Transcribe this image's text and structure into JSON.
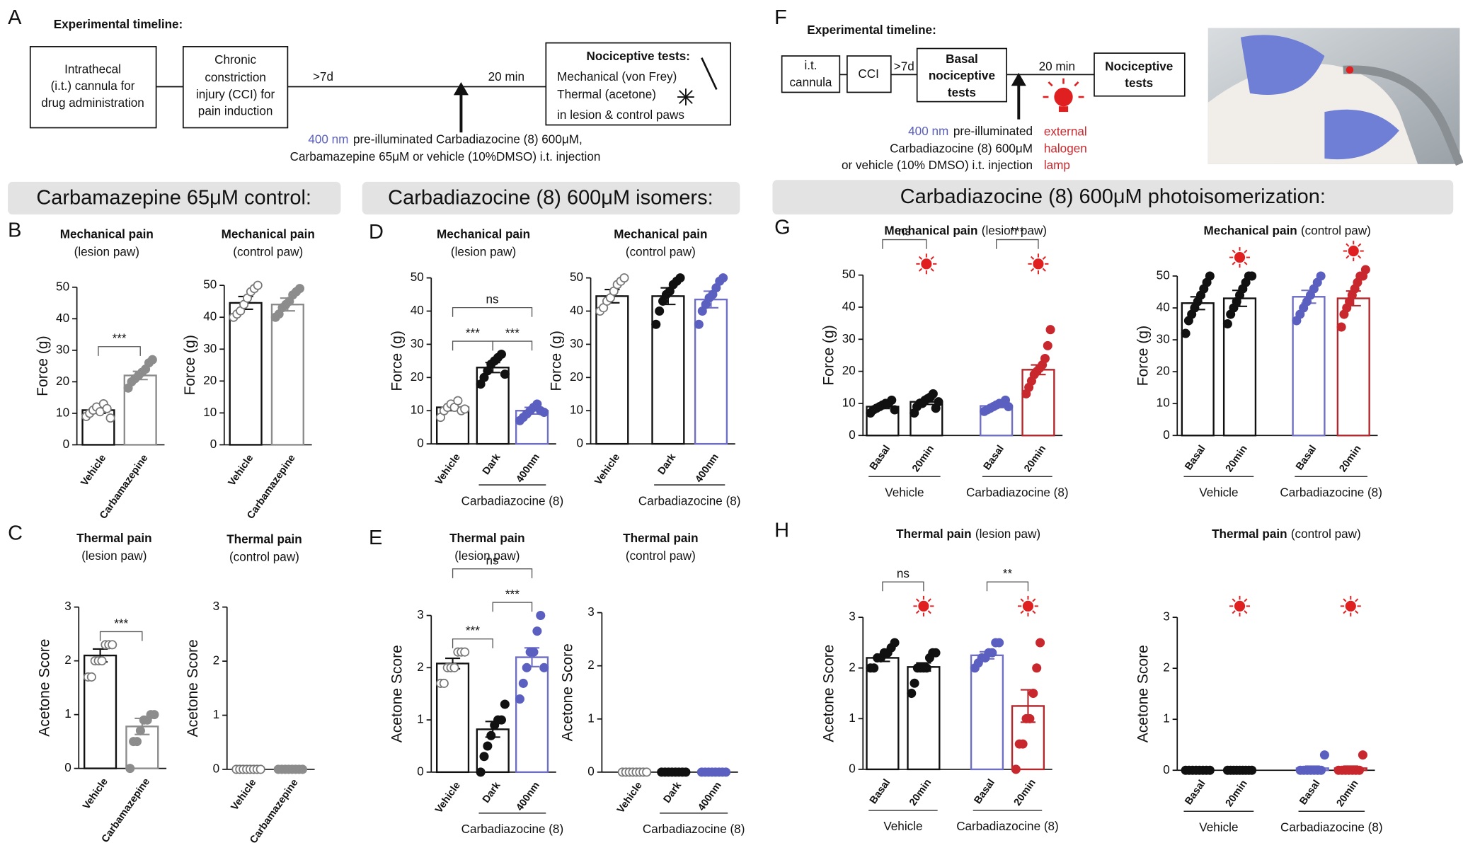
{
  "panel_a": {
    "label": "A",
    "heading": "Experimental timeline:",
    "boxes": [
      [
        "Intrathecal",
        "(i.t.) cannula for",
        "drug administration"
      ],
      [
        "Chronic",
        "constriction",
        "injury (CCI) for",
        "pain induction"
      ],
      [
        "Nociceptive tests:",
        "Mechanical (von Frey)",
        "Thermal (acetone)",
        "in lesion & control paws"
      ]
    ],
    "intervals": [
      ">7d",
      "20 min"
    ],
    "injection": {
      "wavelength": "400 nm",
      "line1": "pre-illuminated Carbadiazocine (8) 600μM,",
      "line2": "Carbamazepine 65μM or vehicle (10%DMSO) i.t. injection"
    }
  },
  "panel_f": {
    "label": "F",
    "heading": "Experimental timeline:",
    "boxes": [
      [
        "i.t.",
        "cannula"
      ],
      [
        "CCI"
      ],
      [
        "Basal",
        "nociceptive",
        "tests"
      ],
      [
        "Nociceptive",
        "tests"
      ]
    ],
    "intervals": [
      ">7d",
      "20 min"
    ],
    "injection": {
      "wavelength": "400 nm",
      "line1": "pre-illuminated",
      "line2": "Carbadiazocine (8) 600μM",
      "line3": "or vehicle (10% DMSO) i.t. injection"
    },
    "lamp": [
      "external",
      "halogen",
      "lamp"
    ]
  },
  "sections": [
    "Carbamazepine 65μM control:",
    "Carbadiazocine (8) 600μM isomers:",
    "Carbadiazocine (8) 600μM photoisomerization:"
  ],
  "chart_data": [
    {
      "panel": "B",
      "type": "bar",
      "title": "Mechanical pain",
      "subtitle": "(lesion paw)",
      "ylabel": "Force (g)",
      "categories": [
        "Vehicle",
        "Carbamazepine"
      ],
      "values": [
        11,
        22
      ],
      "errors": [
        1,
        1.3
      ],
      "points": [
        [
          9,
          10,
          11,
          12,
          10.5,
          13,
          11.5,
          8.5
        ],
        [
          18,
          20,
          21,
          22,
          23,
          24,
          26,
          27
        ]
      ],
      "colors": [
        "#111111",
        "#8c8c8c"
      ],
      "point_fill": [
        "#ffffff",
        "#8c8c8c"
      ],
      "point_stroke": [
        "#777777",
        "#8c8c8c"
      ],
      "ylim": [
        0,
        50
      ],
      "yticks": [
        0,
        10,
        20,
        30,
        40,
        50
      ],
      "significance": [
        {
          "from": 0,
          "to": 1,
          "label": "***"
        }
      ]
    },
    {
      "type": "bar",
      "title": "Mechanical pain",
      "subtitle": "(control paw)",
      "ylabel": "Force (g)",
      "categories": [
        "Vehicle",
        "Carbamazepine"
      ],
      "values": [
        44.5,
        44
      ],
      "errors": [
        2,
        2
      ],
      "points": [
        [
          40,
          41,
          42,
          44,
          46,
          48,
          49,
          50
        ],
        [
          40,
          41,
          43,
          44,
          45,
          47,
          48,
          49
        ]
      ],
      "colors": [
        "#111111",
        "#8c8c8c"
      ],
      "point_fill": [
        "#ffffff",
        "#8c8c8c"
      ],
      "point_stroke": [
        "#777777",
        "#8c8c8c"
      ],
      "ylim": [
        0,
        50
      ],
      "yticks": [
        0,
        10,
        20,
        30,
        40,
        50
      ]
    },
    {
      "panel": "C",
      "type": "bar",
      "title": "Thermal pain",
      "subtitle": "(lesion paw)",
      "ylabel": "Acetone Score",
      "categories": [
        "Vehicle",
        "Carbamazepine"
      ],
      "values": [
        2.1,
        0.78
      ],
      "errors": [
        0.12,
        0.15
      ],
      "points": [
        [
          1.7,
          1.7,
          2,
          2,
          2,
          2.3,
          2.3,
          2.3
        ],
        [
          0,
          0.5,
          0.5,
          0.7,
          0.9,
          0.9,
          1,
          1
        ]
      ],
      "colors": [
        "#111111",
        "#8c8c8c"
      ],
      "point_fill": [
        "#ffffff",
        "#8c8c8c"
      ],
      "point_stroke": [
        "#777777",
        "#8c8c8c"
      ],
      "ylim": [
        0,
        3
      ],
      "yticks": [
        0,
        1,
        2,
        3
      ],
      "significance": [
        {
          "from": 0,
          "to": 1,
          "label": "***"
        }
      ]
    },
    {
      "type": "bar",
      "title": "Thermal pain",
      "subtitle": "(control paw)",
      "ylabel": "Acetone Score",
      "categories": [
        "Vehicle",
        "Carbamazepine"
      ],
      "values": [
        0,
        0
      ],
      "errors": [
        0,
        0
      ],
      "points": [
        [
          0,
          0,
          0,
          0,
          0,
          0,
          0,
          0
        ],
        [
          0,
          0,
          0,
          0,
          0,
          0,
          0,
          0
        ]
      ],
      "colors": [
        "#111111",
        "#8c8c8c"
      ],
      "point_fill": [
        "#ffffff",
        "#8c8c8c"
      ],
      "point_stroke": [
        "#777777",
        "#8c8c8c"
      ],
      "ylim": [
        0,
        3
      ],
      "yticks": [
        0,
        1,
        2,
        3
      ]
    },
    {
      "panel": "D",
      "type": "bar",
      "title": "Mechanical pain",
      "subtitle": "(lesion paw)",
      "ylabel": "Force (g)",
      "categories": [
        "Vehicle",
        "Dark",
        "400nm"
      ],
      "values": [
        11,
        23,
        10
      ],
      "errors": [
        1,
        1.5,
        1
      ],
      "points": [
        [
          8,
          10,
          11,
          12,
          11,
          13,
          10,
          10.5
        ],
        [
          18,
          20,
          22,
          24,
          25,
          26,
          27,
          21
        ],
        [
          7,
          8,
          9,
          10,
          11,
          12,
          10,
          9.5
        ]
      ],
      "colors": [
        "#111111",
        "#111111",
        "#6e6ec4"
      ],
      "point_fill": [
        "#ffffff",
        "#111111",
        "#5a5fc0"
      ],
      "point_stroke": [
        "#777777",
        "#111111",
        "#5a5fc0"
      ],
      "ylim": [
        0,
        50
      ],
      "yticks": [
        0,
        10,
        20,
        30,
        40,
        50
      ],
      "groups": [
        {
          "label": "Carbadiazocine (8)",
          "from": 1,
          "to": 2
        }
      ],
      "significance": [
        {
          "from": 0,
          "to": 1,
          "label": "***"
        },
        {
          "from": 1,
          "to": 2,
          "label": "***"
        },
        {
          "from": 0,
          "to": 2,
          "label": "ns"
        }
      ]
    },
    {
      "type": "bar",
      "title": "Mechanical pain",
      "subtitle": "(control paw)",
      "ylabel": "Force (g)",
      "categories": [
        "Vehicle",
        "Dark",
        "400nm"
      ],
      "values": [
        44.5,
        44.5,
        43.5
      ],
      "errors": [
        2,
        2.5,
        2.5
      ],
      "points": [
        [
          40,
          41,
          43,
          44,
          46,
          48,
          49,
          50
        ],
        [
          36,
          40,
          43,
          45,
          46,
          48,
          49,
          50
        ],
        [
          36,
          40,
          42,
          44,
          45,
          47,
          49,
          50
        ]
      ],
      "colors": [
        "#111111",
        "#111111",
        "#6e6ec4"
      ],
      "point_fill": [
        "#ffffff",
        "#111111",
        "#5a5fc0"
      ],
      "point_stroke": [
        "#777777",
        "#111111",
        "#5a5fc0"
      ],
      "ylim": [
        0,
        50
      ],
      "yticks": [
        0,
        10,
        20,
        30,
        40,
        50
      ],
      "groups": [
        {
          "label": "Carbadiazocine (8)",
          "from": 1,
          "to": 2
        }
      ]
    },
    {
      "panel": "E",
      "type": "bar",
      "title": "Thermal pain",
      "subtitle": "(lesion paw)",
      "ylabel": "Acetone Score",
      "categories": [
        "Vehicle",
        "Dark",
        "400nm"
      ],
      "values": [
        2.08,
        0.82,
        2.2
      ],
      "errors": [
        0.1,
        0.15,
        0.18
      ],
      "points": [
        [
          1.7,
          1.7,
          2,
          2,
          2,
          2.3,
          2.3,
          2.3
        ],
        [
          0,
          0.3,
          0.5,
          0.7,
          0.9,
          1,
          1,
          1.3
        ],
        [
          1.4,
          1.7,
          2,
          2.3,
          2.3,
          2.7,
          3,
          2
        ]
      ],
      "colors": [
        "#111111",
        "#111111",
        "#6e6ec4"
      ],
      "point_fill": [
        "#ffffff",
        "#111111",
        "#5a5fc0"
      ],
      "point_stroke": [
        "#777777",
        "#111111",
        "#5a5fc0"
      ],
      "ylim": [
        0,
        3
      ],
      "yticks": [
        0,
        1,
        2,
        3
      ],
      "groups": [
        {
          "label": "Carbadiazocine (8)",
          "from": 1,
          "to": 2
        }
      ],
      "significance": [
        {
          "from": 0,
          "to": 1,
          "label": "***"
        },
        {
          "from": 1,
          "to": 2,
          "label": "***"
        },
        {
          "from": 0,
          "to": 2,
          "label": "ns"
        }
      ]
    },
    {
      "type": "bar",
      "title": "Thermal pain",
      "subtitle": "(control paw)",
      "ylabel": "Acetone Score",
      "categories": [
        "Vehicle",
        "Dark",
        "400nm"
      ],
      "values": [
        0,
        0,
        0
      ],
      "errors": [
        0,
        0,
        0
      ],
      "points": [
        [
          0,
          0,
          0,
          0,
          0,
          0,
          0,
          0
        ],
        [
          0,
          0,
          0,
          0,
          0,
          0,
          0,
          0
        ],
        [
          0,
          0,
          0,
          0,
          0,
          0,
          0,
          0
        ]
      ],
      "colors": [
        "#111111",
        "#111111",
        "#6e6ec4"
      ],
      "point_fill": [
        "#ffffff",
        "#111111",
        "#5a5fc0"
      ],
      "point_stroke": [
        "#777777",
        "#111111",
        "#5a5fc0"
      ],
      "ylim": [
        0,
        3
      ],
      "yticks": [
        0,
        1,
        2,
        3
      ],
      "groups": [
        {
          "label": "Carbadiazocine (8)",
          "from": 1,
          "to": 2
        }
      ]
    },
    {
      "panel": "G",
      "type": "bar",
      "title": "Mechanical pain",
      "subtitle": "(lesion paw)",
      "ylabel": "Force (g)",
      "categories": [
        "Basal",
        "20min",
        "Basal",
        "20min"
      ],
      "values": [
        9,
        10.5,
        9.2,
        20.5
      ],
      "errors": [
        0.6,
        0.8,
        0.5,
        1.5
      ],
      "points": [
        [
          7,
          8,
          8.5,
          9,
          9.5,
          10,
          10,
          11,
          8
        ],
        [
          7,
          9,
          10,
          10,
          11,
          11.5,
          12,
          13,
          8.5,
          10.5
        ],
        [
          7.5,
          8,
          8.5,
          9,
          9.5,
          10,
          10,
          11,
          9
        ],
        [
          13,
          15,
          17,
          19,
          20,
          21,
          22,
          24,
          28,
          33
        ]
      ],
      "colors": [
        "#111111",
        "#111111",
        "#6e6ec4",
        "#b3262b"
      ],
      "point_fill": [
        "#111111",
        "#111111",
        "#5a5fc0",
        "#c8282d"
      ],
      "point_stroke": [
        "#111111",
        "#111111",
        "#5a5fc0",
        "#c8282d"
      ],
      "light": [
        false,
        true,
        false,
        true
      ],
      "ylim": [
        0,
        50
      ],
      "yticks": [
        0,
        10,
        20,
        30,
        40,
        50
      ],
      "groups": [
        {
          "label": "Vehicle",
          "from": 0,
          "to": 1
        },
        {
          "label": "Carbadiazocine (8)",
          "from": 2,
          "to": 3
        }
      ],
      "significance": [
        {
          "from": 0,
          "to": 1,
          "label": "ns"
        },
        {
          "from": 2,
          "to": 3,
          "label": "***"
        }
      ]
    },
    {
      "type": "bar",
      "title": "Mechanical pain",
      "subtitle": "(control paw)",
      "ylabel": "Force (g)",
      "categories": [
        "Basal",
        "20min",
        "Basal",
        "20min"
      ],
      "values": [
        41.5,
        43,
        43.5,
        43
      ],
      "errors": [
        2,
        2.5,
        2,
        2.3
      ],
      "points": [
        [
          32,
          36,
          38,
          40,
          42,
          44,
          46,
          48,
          50
        ],
        [
          35,
          38,
          40,
          42,
          44,
          46,
          48,
          50,
          50
        ],
        [
          36,
          38,
          40,
          42,
          44,
          46,
          48,
          50
        ],
        [
          34,
          38,
          40,
          42,
          44,
          46,
          48,
          50,
          50,
          52
        ]
      ],
      "colors": [
        "#111111",
        "#111111",
        "#6e6ec4",
        "#b3262b"
      ],
      "point_fill": [
        "#111111",
        "#111111",
        "#5a5fc0",
        "#c8282d"
      ],
      "point_stroke": [
        "#111111",
        "#111111",
        "#5a5fc0",
        "#c8282d"
      ],
      "light": [
        false,
        true,
        false,
        true
      ],
      "ylim": [
        0,
        50
      ],
      "yticks": [
        0,
        10,
        20,
        30,
        40,
        50
      ],
      "groups": [
        {
          "label": "Vehicle",
          "from": 0,
          "to": 1
        },
        {
          "label": "Carbadiazocine (8)",
          "from": 2,
          "to": 3
        }
      ]
    },
    {
      "panel": "H",
      "type": "bar",
      "title": "Thermal pain",
      "subtitle": "(lesion paw)",
      "ylabel": "Acetone Score",
      "categories": [
        "Basal",
        "20min",
        "Basal",
        "20min"
      ],
      "values": [
        2.2,
        2.02,
        2.25,
        1.25
      ],
      "errors": [
        0.07,
        0.08,
        0.07,
        0.32
      ],
      "points": [
        [
          2,
          2,
          2.2,
          2.2,
          2.3,
          2.3,
          2.4,
          2.5
        ],
        [
          1.5,
          1.7,
          2,
          2,
          2,
          2,
          2.2,
          2.3,
          2.3
        ],
        [
          2,
          2.1,
          2.2,
          2.2,
          2.3,
          2.3,
          2.5,
          2.5
        ],
        [
          0,
          0.5,
          0.5,
          1,
          1,
          1.5,
          2,
          2.5
        ]
      ],
      "colors": [
        "#111111",
        "#111111",
        "#6e6ec4",
        "#b3262b"
      ],
      "point_fill": [
        "#111111",
        "#111111",
        "#5a5fc0",
        "#c8282d"
      ],
      "point_stroke": [
        "#111111",
        "#111111",
        "#5a5fc0",
        "#c8282d"
      ],
      "light": [
        false,
        true,
        false,
        true
      ],
      "ylim": [
        0,
        3
      ],
      "yticks": [
        0,
        1,
        2,
        3
      ],
      "groups": [
        {
          "label": "Vehicle",
          "from": 0,
          "to": 1
        },
        {
          "label": "Carbadiazocine (8)",
          "from": 2,
          "to": 3
        }
      ],
      "significance": [
        {
          "from": 0,
          "to": 1,
          "label": "ns"
        },
        {
          "from": 2,
          "to": 3,
          "label": "**"
        }
      ]
    },
    {
      "type": "bar",
      "title": "Thermal pain",
      "subtitle": "(control paw)",
      "ylabel": "Acetone Score",
      "categories": [
        "Basal",
        "20min",
        "Basal",
        "20min"
      ],
      "values": [
        0,
        0,
        0.04,
        0.04
      ],
      "errors": [
        0,
        0,
        0.04,
        0.04
      ],
      "points": [
        [
          0,
          0,
          0,
          0,
          0,
          0,
          0,
          0
        ],
        [
          0,
          0,
          0,
          0,
          0,
          0,
          0,
          0,
          0
        ],
        [
          0,
          0,
          0,
          0,
          0,
          0,
          0,
          0.3
        ],
        [
          0,
          0,
          0,
          0,
          0,
          0,
          0,
          0.3
        ]
      ],
      "colors": [
        "#111111",
        "#111111",
        "#6e6ec4",
        "#b3262b"
      ],
      "point_fill": [
        "#111111",
        "#111111",
        "#5a5fc0",
        "#c8282d"
      ],
      "point_stroke": [
        "#111111",
        "#111111",
        "#5a5fc0",
        "#c8282d"
      ],
      "light": [
        false,
        true,
        false,
        true
      ],
      "ylim": [
        0,
        3
      ],
      "yticks": [
        0,
        1,
        2,
        3
      ],
      "groups": [
        {
          "label": "Vehicle",
          "from": 0,
          "to": 1
        },
        {
          "label": "Carbadiazocine (8)",
          "from": 2,
          "to": 3
        }
      ]
    }
  ]
}
